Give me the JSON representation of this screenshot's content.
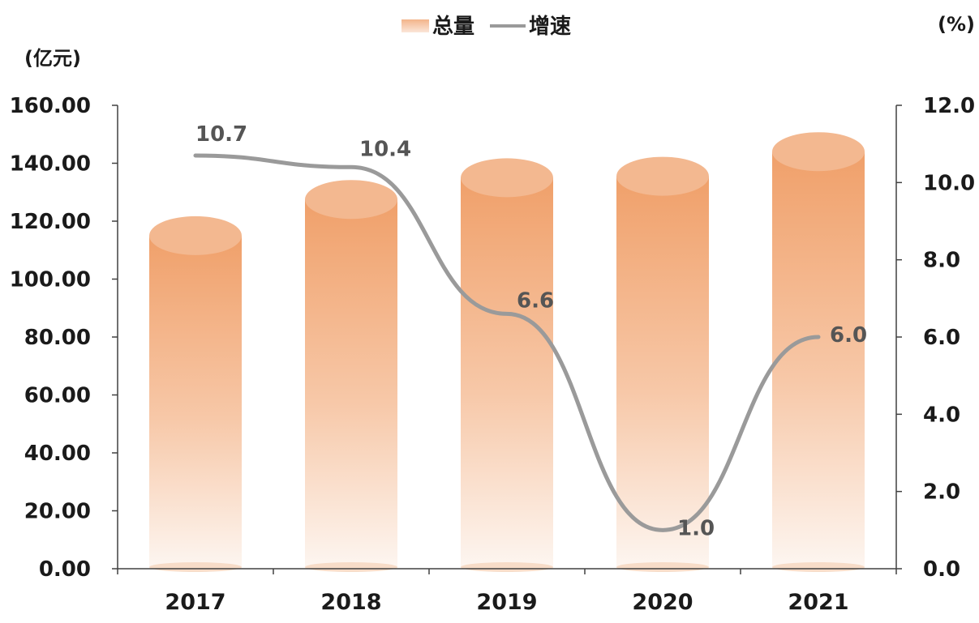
{
  "chart_data": {
    "type": "bar",
    "categories": [
      "2017",
      "2018",
      "2019",
      "2020",
      "2021"
    ],
    "series": [
      {
        "name": "总量",
        "type": "bar",
        "axis": "left",
        "values": [
          115.0,
          127.5,
          135.0,
          135.5,
          144.0
        ]
      },
      {
        "name": "增速",
        "type": "line",
        "axis": "right",
        "values": [
          10.7,
          10.4,
          6.6,
          1.0,
          6.0
        ],
        "labels": [
          "10.7",
          "10.4",
          "6.6",
          "1.0",
          "6.0"
        ]
      }
    ],
    "ylabel_left": "(亿元)",
    "ylabel_right": "(%)",
    "ylim_left": [
      0,
      160
    ],
    "ylim_right": [
      0,
      12
    ],
    "yticks_left": [
      "0.00",
      "20.00",
      "40.00",
      "60.00",
      "80.00",
      "100.00",
      "120.00",
      "140.00",
      "160.00"
    ],
    "yticks_right": [
      "0.0",
      "2.0",
      "4.0",
      "6.0",
      "8.0",
      "10.0",
      "12.0"
    ],
    "grid": false,
    "legend_position": "top-center",
    "colors": {
      "bar_top": "#f0a06a",
      "bar_bottom": "#fcf2ec",
      "bar_cap": "#f3b890",
      "line": "#9a9a9a",
      "axis": "#404040"
    }
  }
}
